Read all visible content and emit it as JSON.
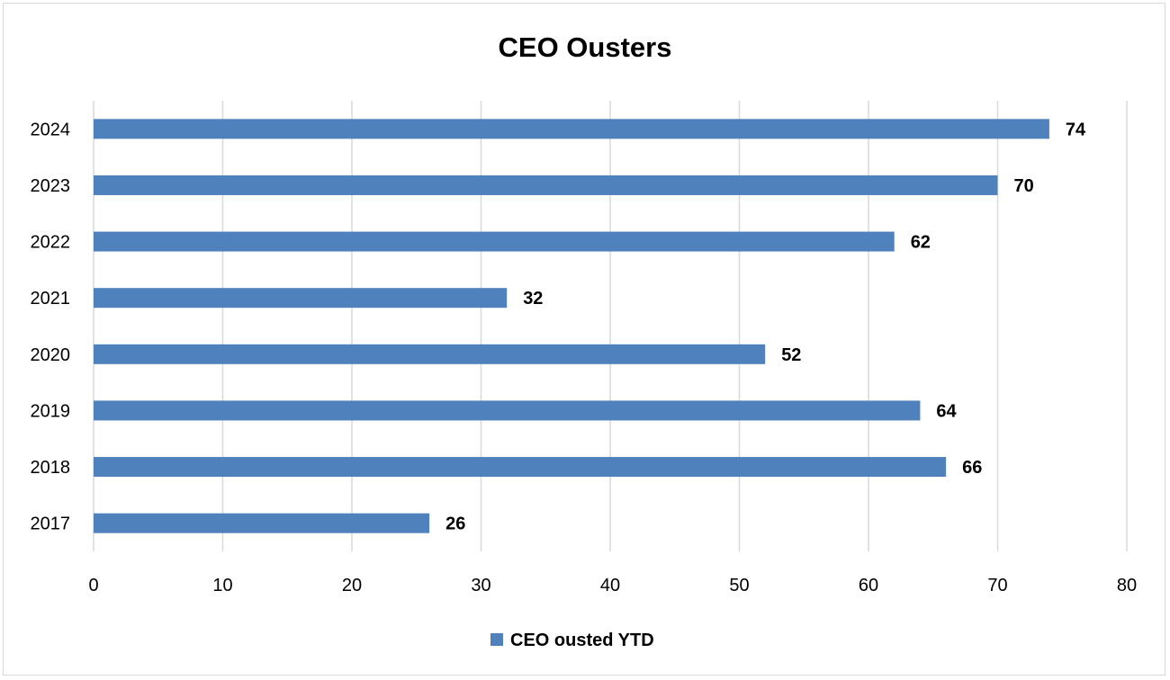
{
  "chart_data": {
    "type": "bar",
    "orientation": "horizontal",
    "title": "CEO Ousters",
    "xlabel": "",
    "ylabel": "",
    "categories": [
      "2017",
      "2018",
      "2019",
      "2020",
      "2021",
      "2022",
      "2023",
      "2024"
    ],
    "series": [
      {
        "name": "CEO ousted YTD",
        "values": [
          26,
          66,
          64,
          52,
          32,
          62,
          70,
          74
        ],
        "color": "#4f81bd"
      }
    ],
    "xlim": [
      0,
      80
    ],
    "x_ticks": [
      "0",
      "10",
      "20",
      "30",
      "40",
      "50",
      "60",
      "70",
      "80"
    ],
    "data_labels": [
      "26",
      "66",
      "64",
      "52",
      "32",
      "62",
      "70",
      "74"
    ],
    "grid": "vertical",
    "legend_position": "bottom",
    "colors": {
      "bar": "#4f81bd",
      "gridline": "#d9d9d9",
      "border": "#d9d9d9"
    }
  }
}
